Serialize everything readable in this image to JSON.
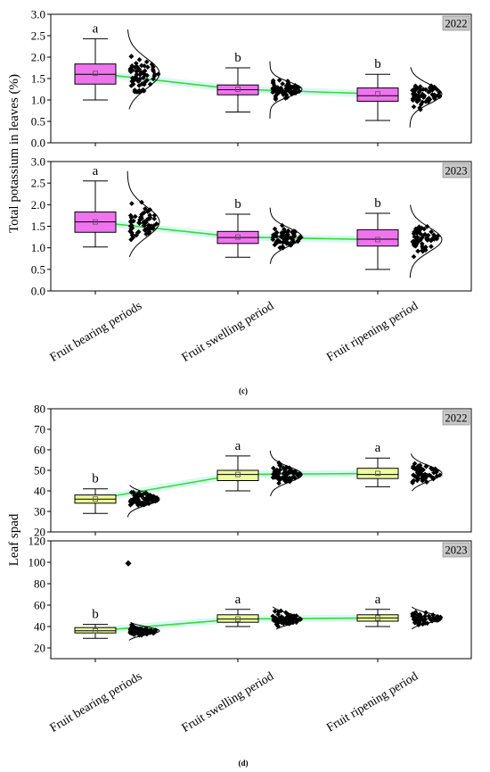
{
  "panel_c": {
    "label": "(c)",
    "ylabel": "Total potassium in leaves (%)",
    "categories": [
      "Fruit bearing periods",
      "Fruit swelling period",
      "Fruit ripening period"
    ]
  },
  "panel_d": {
    "label": "(d)",
    "ylabel": "Leaf spad",
    "categories": [
      "Fruit bearing periods",
      "Fruit swelling period",
      "Fruit ripening period"
    ]
  },
  "colors": {
    "box_c": "#ee74ee",
    "box_d": "#eeff99",
    "trend_line": "#33dd33",
    "trend_band": "#ccf5ee",
    "year_tag": "#c8c8c8"
  },
  "chart_data": [
    {
      "type": "box",
      "panel": "(c)",
      "year": "2022",
      "ylabel": "Total potassium in leaves (%)",
      "ylim": [
        0,
        3.0
      ],
      "yticks": [
        "0.0",
        "0.5",
        "1.0",
        "1.5",
        "2.0",
        "2.5",
        "3.0"
      ],
      "categories": [
        "Fruit bearing periods",
        "Fruit swelling period",
        "Fruit ripening period"
      ],
      "boxes": [
        {
          "min": 1.0,
          "q1": 1.37,
          "median": 1.6,
          "q3": 1.84,
          "max": 2.43,
          "mean": 1.62,
          "letter": "a"
        },
        {
          "min": 0.72,
          "q1": 1.12,
          "median": 1.24,
          "q3": 1.35,
          "max": 1.75,
          "mean": 1.25,
          "letter": "b"
        },
        {
          "min": 0.52,
          "q1": 0.97,
          "median": 1.1,
          "q3": 1.28,
          "max": 1.6,
          "mean": 1.14,
          "letter": "b"
        }
      ],
      "trend": [
        1.62,
        1.25,
        1.14
      ]
    },
    {
      "type": "box",
      "panel": "(c)",
      "year": "2023",
      "ylabel": "Total potassium in leaves (%)",
      "ylim": [
        0,
        3.0
      ],
      "yticks": [
        "0.0",
        "0.5",
        "1.0",
        "1.5",
        "2.0",
        "2.5",
        "3.0"
      ],
      "categories": [
        "Fruit bearing periods",
        "Fruit swelling period",
        "Fruit ripening period"
      ],
      "boxes": [
        {
          "min": 1.02,
          "q1": 1.36,
          "median": 1.6,
          "q3": 1.83,
          "max": 2.55,
          "mean": 1.6,
          "letter": "a"
        },
        {
          "min": 0.78,
          "q1": 1.1,
          "median": 1.24,
          "q3": 1.38,
          "max": 1.78,
          "mean": 1.25,
          "letter": "b"
        },
        {
          "min": 0.5,
          "q1": 1.04,
          "median": 1.2,
          "q3": 1.42,
          "max": 1.8,
          "mean": 1.19,
          "letter": "b"
        }
      ],
      "trend": [
        1.6,
        1.25,
        1.19
      ]
    },
    {
      "type": "box",
      "panel": "(d)",
      "year": "2022",
      "ylabel": "Leaf spad",
      "ylim": [
        20,
        80
      ],
      "yticks": [
        "20",
        "30",
        "40",
        "50",
        "60",
        "70",
        "80"
      ],
      "categories": [
        "Fruit bearing periods",
        "Fruit swelling period",
        "Fruit ripening period"
      ],
      "boxes": [
        {
          "min": 29,
          "q1": 34,
          "median": 36,
          "q3": 38,
          "max": 41,
          "mean": 36,
          "letter": "b"
        },
        {
          "min": 40,
          "q1": 45,
          "median": 48,
          "q3": 50,
          "max": 57,
          "mean": 48,
          "letter": "a"
        },
        {
          "min": 42,
          "q1": 46,
          "median": 48,
          "q3": 51,
          "max": 56,
          "mean": 48.5,
          "letter": "a"
        }
      ],
      "trend": [
        36,
        48,
        48.5
      ]
    },
    {
      "type": "box",
      "panel": "(d)",
      "year": "2023",
      "ylabel": "Leaf spad",
      "ylim": [
        10,
        120
      ],
      "yticks": [
        "20",
        "40",
        "60",
        "80",
        "100",
        "120"
      ],
      "categories": [
        "Fruit bearing periods",
        "Fruit swelling period",
        "Fruit ripening period"
      ],
      "boxes": [
        {
          "min": 29,
          "q1": 34,
          "median": 36,
          "q3": 39,
          "max": 42,
          "mean": 36,
          "letter": "b"
        },
        {
          "min": 40,
          "q1": 44,
          "median": 47,
          "q3": 51,
          "max": 56,
          "mean": 47,
          "letter": "a"
        },
        {
          "min": 40,
          "q1": 45,
          "median": 48,
          "q3": 51,
          "max": 56,
          "mean": 48,
          "letter": "a"
        }
      ],
      "outliers": [
        {
          "category": "Fruit bearing periods",
          "value": 99
        }
      ],
      "trend": [
        36,
        47,
        48
      ]
    }
  ]
}
